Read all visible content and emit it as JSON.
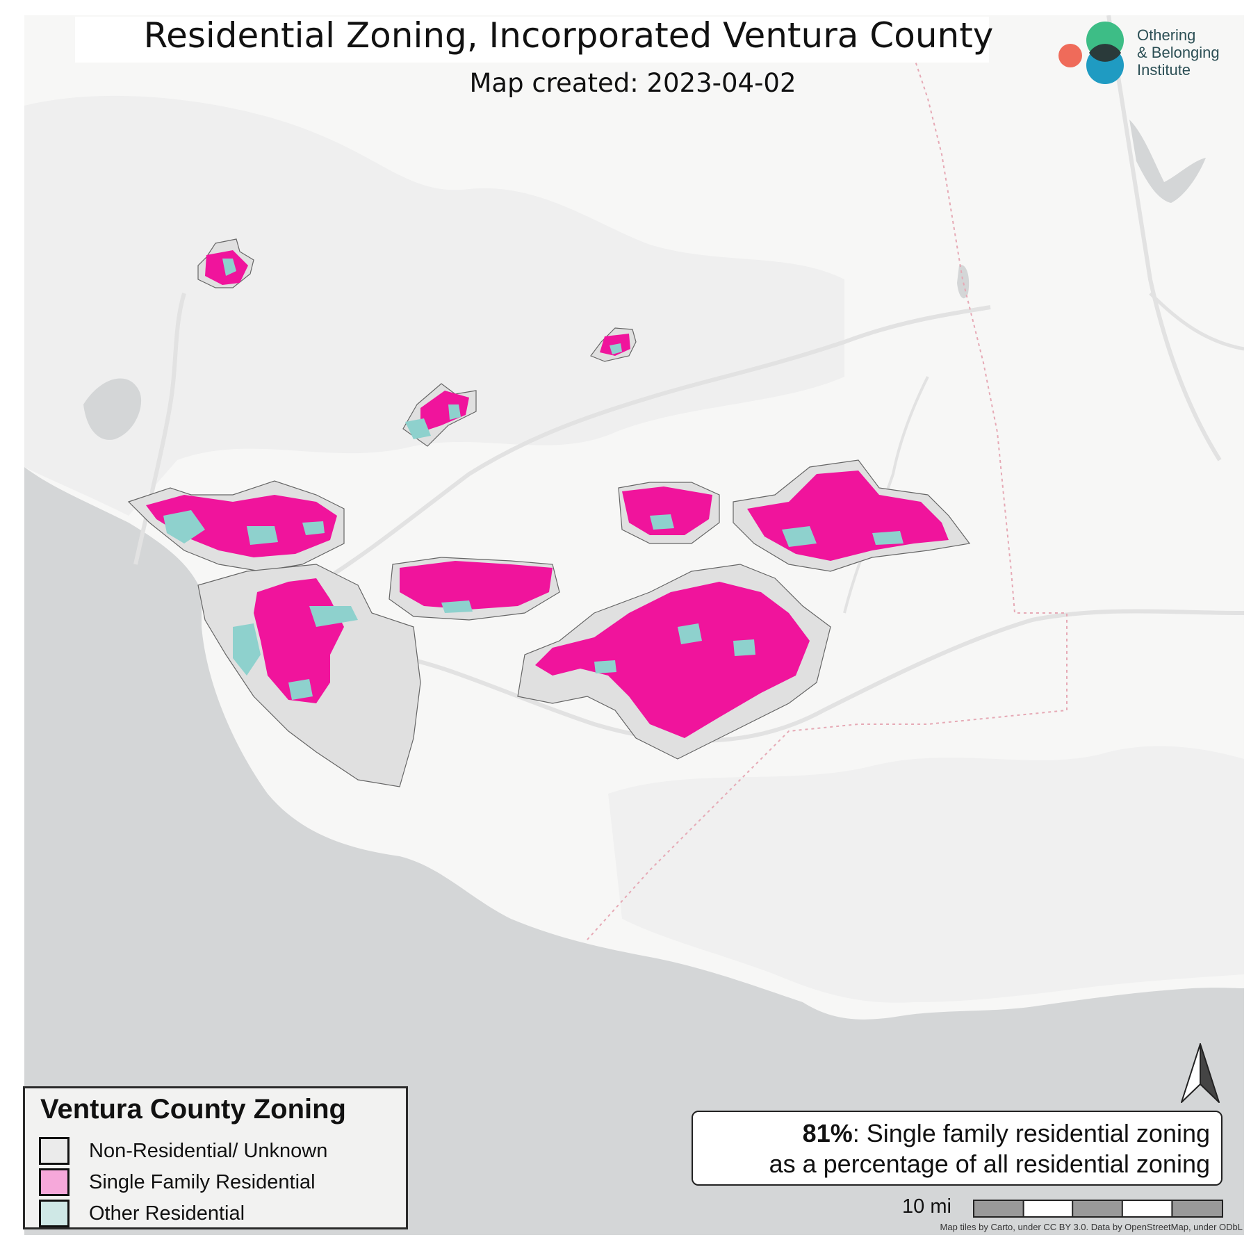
{
  "map": {
    "title": "Residential Zoning, Incorporated Ventura County",
    "subtitle": "Map created: 2023-04-02"
  },
  "logo": {
    "line1": "Othering",
    "line2": "& Belonging",
    "line3": "Institute",
    "colors": {
      "coral": "#ef6b5a",
      "green": "#3dbd86",
      "blue": "#1f9bc2",
      "overlap": "#2a3a3a"
    }
  },
  "legend": {
    "title": "Ventura County Zoning",
    "items": [
      {
        "label": "Non-Residential/ Unknown",
        "color": "#ebebeb"
      },
      {
        "label": "Single Family Residential",
        "color": "#f6a8da"
      },
      {
        "label": "Other Residential",
        "color": "#cfe8e6"
      }
    ]
  },
  "map_colors": {
    "ocean": "#d4d6d7",
    "land": "#f7f7f6",
    "hills": "#eeeeee",
    "non_residential": "#e0e0e0",
    "single_family": "#f0149c",
    "other_residential": "#8ed1cd",
    "boundary": "#666666",
    "county_line": "#e6a9b5"
  },
  "stat": {
    "value": "81%",
    "line1_rest": ": Single family residential zoning",
    "line2": "as a percentage of all residential zoning"
  },
  "scale": {
    "label": "10 mi"
  },
  "north_arrow": {
    "icon": "north-arrow-icon"
  },
  "attribution": "Map tiles by Carto, under CC BY 3.0. Data by OpenStreetMap, under ODbL"
}
